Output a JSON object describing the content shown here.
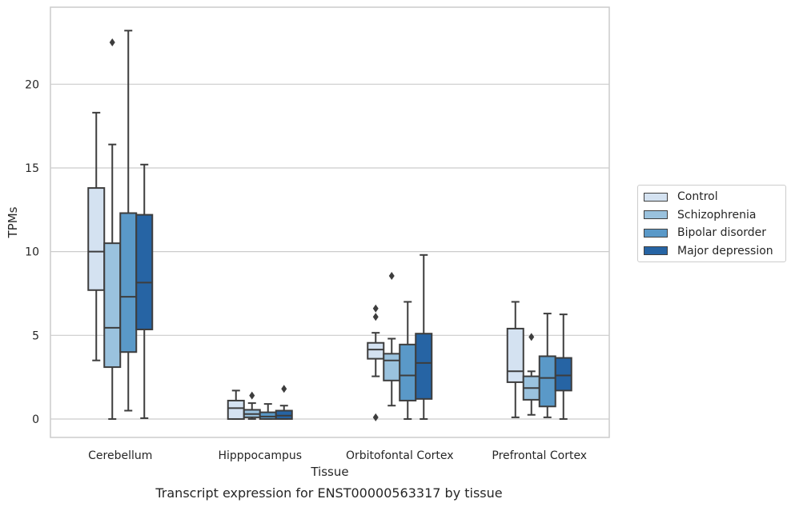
{
  "chart_data": {
    "type": "boxplot",
    "xlabel": "Tissue",
    "ylabel": "TPMs",
    "caption": "Transcript expression for ENST00000563317 by tissue",
    "ylim": [
      -1.1,
      24.6
    ],
    "yticks": [
      0,
      5,
      10,
      15,
      20
    ],
    "grid": "horizontal",
    "legend_position": "right",
    "categories": [
      "Cerebellum",
      "Hipppocampus",
      "Orbitofontal Cortex",
      "Prefrontal Cortex"
    ],
    "series": [
      {
        "name": "Control",
        "color": "#d4e2f1",
        "boxes": [
          {
            "whislo": 3.5,
            "q1": 7.7,
            "med": 10.0,
            "q3": 13.8,
            "whishi": 18.3,
            "fliers": []
          },
          {
            "whislo": 0.0,
            "q1": 0.0,
            "med": 0.65,
            "q3": 1.1,
            "whishi": 1.7,
            "fliers": []
          },
          {
            "whislo": 2.55,
            "q1": 3.6,
            "med": 4.15,
            "q3": 4.55,
            "whishi": 5.15,
            "fliers": [
              0.1,
              6.1,
              6.6
            ]
          },
          {
            "whislo": 0.1,
            "q1": 2.2,
            "med": 2.85,
            "q3": 5.4,
            "whishi": 7.0,
            "fliers": []
          }
        ]
      },
      {
        "name": "Schizophrenia",
        "color": "#9ac2de",
        "boxes": [
          {
            "whislo": 0.0,
            "q1": 3.1,
            "med": 5.45,
            "q3": 10.5,
            "whishi": 16.4,
            "fliers": [
              22.5
            ]
          },
          {
            "whislo": 0.0,
            "q1": 0.1,
            "med": 0.3,
            "q3": 0.55,
            "whishi": 0.95,
            "fliers": [
              1.4
            ]
          },
          {
            "whislo": 0.8,
            "q1": 2.3,
            "med": 3.5,
            "q3": 3.9,
            "whishi": 4.8,
            "fliers": [
              8.55
            ]
          },
          {
            "whislo": 0.25,
            "q1": 1.15,
            "med": 1.85,
            "q3": 2.55,
            "whishi": 2.85,
            "fliers": [
              4.9
            ]
          }
        ]
      },
      {
        "name": "Bipolar disorder",
        "color": "#5a99c8",
        "boxes": [
          {
            "whislo": 0.5,
            "q1": 4.0,
            "med": 7.3,
            "q3": 12.3,
            "whishi": 23.2,
            "fliers": []
          },
          {
            "whislo": 0.0,
            "q1": 0.0,
            "med": 0.15,
            "q3": 0.4,
            "whishi": 0.9,
            "fliers": []
          },
          {
            "whislo": 0.0,
            "q1": 1.1,
            "med": 2.6,
            "q3": 4.45,
            "whishi": 7.0,
            "fliers": []
          },
          {
            "whislo": 0.1,
            "q1": 0.75,
            "med": 2.45,
            "q3": 3.75,
            "whishi": 6.3,
            "fliers": []
          }
        ]
      },
      {
        "name": "Major depression",
        "color": "#2664a4",
        "boxes": [
          {
            "whislo": 0.05,
            "q1": 5.35,
            "med": 8.15,
            "q3": 12.2,
            "whishi": 15.2,
            "fliers": []
          },
          {
            "whislo": 0.0,
            "q1": 0.0,
            "med": 0.2,
            "q3": 0.5,
            "whishi": 0.8,
            "fliers": [
              1.8
            ]
          },
          {
            "whislo": 0.0,
            "q1": 1.2,
            "med": 3.35,
            "q3": 5.1,
            "whishi": 9.8,
            "fliers": []
          },
          {
            "whislo": 0.0,
            "q1": 1.7,
            "med": 2.6,
            "q3": 3.65,
            "whishi": 6.25,
            "fliers": []
          }
        ]
      }
    ]
  }
}
